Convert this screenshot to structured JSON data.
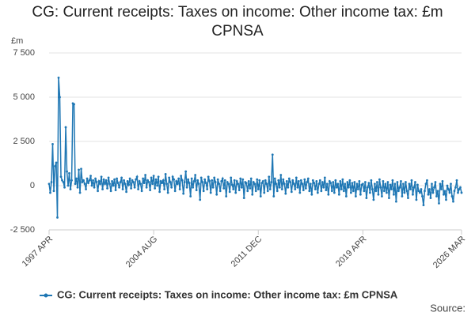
{
  "chart_data": {
    "type": "line",
    "title": "CG: Current receipts: Taxes on income: Other income tax: £m CPNSA",
    "y_unit": "£m",
    "source": "Source:",
    "ylim": [
      -2500,
      7500
    ],
    "yticks": [
      {
        "value": -2500,
        "label": "-2 500"
      },
      0,
      {
        "value": 2500,
        "label": "2 500"
      },
      {
        "value": 5000,
        "label": "5 000"
      },
      {
        "value": 7500,
        "label": "7 500"
      }
    ],
    "grid": true,
    "categories": [
      "1997 APR",
      null,
      null,
      null,
      null,
      null,
      null,
      null,
      null,
      null,
      null,
      null,
      null,
      null,
      null,
      null,
      null,
      null,
      null,
      null,
      null,
      null,
      null,
      null,
      null,
      null,
      null,
      null,
      null,
      null,
      null,
      null,
      null,
      null,
      null,
      null,
      null,
      null,
      null,
      null,
      null,
      null,
      null,
      null,
      null,
      null,
      null,
      null,
      null,
      null,
      null,
      null,
      null,
      null,
      null,
      null,
      null,
      null,
      null,
      null,
      null,
      null,
      null,
      null,
      null,
      null,
      null,
      null,
      null,
      null,
      null,
      null,
      null,
      null,
      null,
      null,
      null,
      null,
      null,
      null,
      null,
      null,
      null,
      null,
      null,
      null,
      null,
      null,
      "2004 AUG",
      null,
      null,
      null,
      null,
      null,
      null,
      null,
      null,
      null,
      null,
      null,
      null,
      null,
      null,
      null,
      null,
      null,
      null,
      null,
      null,
      null,
      null,
      null,
      null,
      null,
      null,
      null,
      null,
      null,
      null,
      null,
      null,
      null,
      null,
      null,
      null,
      null,
      null,
      null,
      null,
      null,
      null,
      null,
      null,
      null,
      null,
      null,
      null,
      null,
      null,
      null,
      null,
      null,
      null,
      null,
      null,
      null,
      null,
      null,
      null,
      null,
      null,
      null,
      null,
      null,
      null,
      null,
      null,
      null,
      null,
      null,
      null,
      null,
      null,
      null,
      null,
      null,
      null,
      null,
      null,
      null,
      null,
      null,
      null,
      null,
      null,
      null,
      "2011 DEC",
      null,
      null,
      null,
      null,
      null,
      null,
      null,
      null,
      null,
      null,
      null,
      null,
      null,
      null,
      null,
      null,
      null,
      null,
      null,
      null,
      null,
      null,
      null,
      null,
      null,
      null,
      null,
      null,
      null,
      null,
      null,
      null,
      null,
      null,
      null,
      null,
      null,
      null,
      null,
      null,
      null,
      null,
      null,
      null,
      null,
      null,
      null,
      null,
      null,
      null,
      null,
      null,
      null,
      null,
      null,
      null,
      null,
      null,
      null,
      null,
      null,
      null,
      null,
      null,
      null,
      null,
      null,
      null,
      null,
      null,
      null,
      null,
      null,
      null,
      null,
      null,
      null,
      null,
      null,
      null,
      null,
      null,
      null,
      null,
      null,
      null,
      null,
      "2019 APR",
      null,
      null,
      null,
      null,
      null,
      null,
      null,
      null,
      null,
      null,
      null,
      null,
      null,
      null,
      null,
      null,
      null,
      null,
      null,
      null,
      null,
      null,
      null,
      null,
      null,
      null,
      null,
      null,
      null,
      null,
      null,
      null,
      null,
      null,
      null,
      null,
      null,
      null,
      null,
      null,
      null,
      null,
      null,
      null,
      null,
      null,
      null,
      null,
      null,
      null,
      null,
      null,
      null,
      null,
      null,
      null,
      null,
      null,
      null,
      null,
      null,
      null,
      null,
      null,
      null,
      null,
      null,
      null,
      null,
      null,
      null,
      null,
      null,
      null,
      null,
      null,
      null,
      null,
      null,
      null,
      null,
      null,
      "2026 MAR"
    ],
    "series": [
      {
        "name": "CG: Current receipts: Taxes on income: Other income tax: £m CPNSA",
        "color": "#1f77b4",
        "values": [
          100,
          -400,
          200,
          2350,
          -300,
          1100,
          1300,
          -1800,
          6100,
          5000,
          500,
          300,
          200,
          -100,
          3300,
          800,
          0,
          700,
          -200,
          300,
          4650,
          4600,
          100,
          400,
          -100,
          900,
          -400,
          950,
          200,
          300,
          100,
          -200,
          400,
          150,
          300,
          550,
          0,
          300,
          -100,
          400,
          200,
          -300,
          250,
          100,
          500,
          -200,
          350,
          100,
          300,
          -150,
          450,
          100,
          -300,
          250,
          0,
          350,
          -250,
          400,
          150,
          -100,
          200,
          450,
          -200,
          300,
          100,
          -350,
          250,
          50,
          400,
          -150,
          300,
          200,
          -100,
          350,
          500,
          -200,
          250,
          100,
          -300,
          400,
          150,
          600,
          -100,
          300,
          200,
          -250,
          450,
          100,
          550,
          -150,
          350,
          0,
          500,
          -350,
          250,
          150,
          300,
          -200,
          650,
          100,
          -400,
          450,
          200,
          -100,
          500,
          350,
          -300,
          250,
          100,
          400,
          -200,
          550,
          300,
          -450,
          200,
          800,
          -100,
          350,
          150,
          -600,
          400,
          -100,
          250,
          600,
          -250,
          300,
          100,
          -800,
          450,
          200,
          -300,
          350,
          150,
          -200,
          500,
          250,
          -400,
          300,
          -100,
          450,
          200,
          -500,
          350,
          100,
          -300,
          250,
          400,
          -150,
          300,
          -600,
          200,
          100,
          -350,
          450,
          50,
          -200,
          300,
          -400,
          250,
          100,
          -250,
          400,
          -100,
          350,
          -700,
          200,
          150,
          -300,
          250,
          -150,
          400,
          -500,
          200,
          100,
          -300,
          350,
          -200,
          300,
          -600,
          150,
          250,
          -400,
          300,
          100,
          -300,
          500,
          -200,
          200,
          1750,
          -600,
          400,
          100,
          -300,
          300,
          -100,
          600,
          -200,
          350,
          100,
          -450,
          250,
          -100,
          400,
          200,
          -350,
          300,
          100,
          -200,
          450,
          -100,
          250,
          -400,
          300,
          100,
          -250,
          350,
          -150,
          200,
          400,
          -300,
          100,
          -500,
          300,
          150,
          -200,
          250,
          -400,
          100,
          300,
          -300,
          200,
          -100,
          450,
          -250,
          100,
          -500,
          250,
          150,
          -300,
          200,
          -400,
          300,
          -100,
          100,
          -500,
          250,
          -200,
          350,
          -300,
          100,
          -600,
          200,
          -100,
          300,
          -400,
          150,
          -300,
          200,
          -600,
          100,
          -200,
          250,
          -500,
          50,
          100,
          -300,
          200,
          -700,
          -100,
          150,
          -400,
          300,
          -200,
          -800,
          100,
          -300,
          200,
          -500,
          350,
          -100,
          -600,
          250,
          -300,
          100,
          -400,
          200,
          -700,
          50,
          -200,
          300,
          -500,
          100,
          -900,
          200,
          -300,
          -100,
          250,
          -600,
          100,
          -400,
          200,
          -300,
          -700,
          100,
          -200,
          300,
          -500,
          -100,
          200,
          -800,
          50,
          -300,
          -400,
          -200,
          -600,
          -1100,
          -300,
          100,
          300,
          -500,
          -200,
          -700,
          100,
          -400,
          -100,
          200,
          -600,
          -300,
          -1000,
          100,
          -200,
          250,
          -500,
          -300,
          -800,
          0,
          -200,
          -400,
          100,
          -600,
          -900,
          -300,
          -100,
          300,
          -400,
          -200,
          -100,
          -400
        ]
      }
    ]
  }
}
